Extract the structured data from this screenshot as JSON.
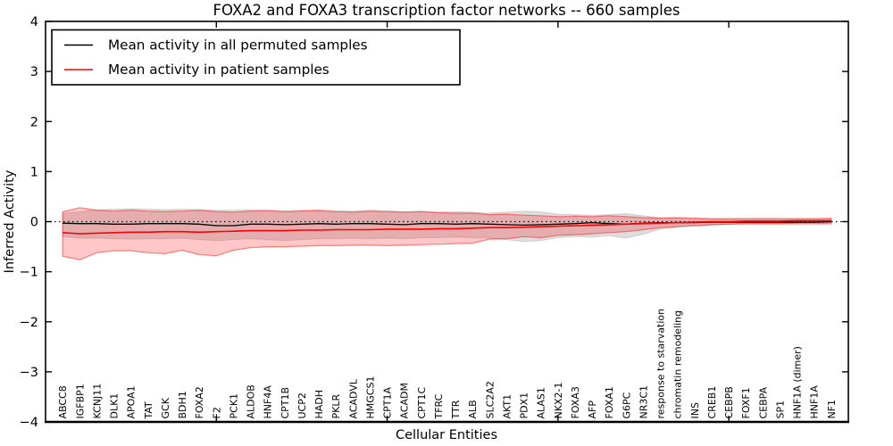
{
  "title": "FOXA2 and FOXA3 transcription factor networks -- 660 samples",
  "chart_data": {
    "type": "line",
    "title": "FOXA2 and FOXA3 transcription factor networks -- 660 samples",
    "xlabel": "Cellular Entities",
    "ylabel": "Inferred Activity",
    "ylim": [
      -4,
      4
    ],
    "yticks": [
      -4,
      -3,
      -2,
      -1,
      0,
      1,
      2,
      3,
      4
    ],
    "xlim": [
      0,
      47
    ],
    "xticks_axis_units": [
      10,
      20,
      30,
      40
    ],
    "grid": false,
    "zero_line": {
      "value": 0,
      "style": "dotted",
      "color": "#000000"
    },
    "legend_position": "upper left",
    "categories": [
      "ABCC8",
      "IGFBP1",
      "KCNJ11",
      "DLK1",
      "APOA1",
      "TAT",
      "GCK",
      "BDH1",
      "FOXA2",
      "F2",
      "PCK1",
      "ALDOB",
      "HNF4A",
      "CPT1B",
      "UCP2",
      "HADH",
      "PKLR",
      "ACADVL",
      "HMGCS1",
      "CPT1A",
      "ACADM",
      "CPT1C",
      "TFRC",
      "TTR",
      "ALB",
      "SLC2A2",
      "AKT1",
      "PDX1",
      "ALAS1",
      "NKX2-1",
      "FOXA3",
      "AFP",
      "FOXA1",
      "G6PC",
      "NR3C1",
      "response to starvation",
      "chromatin remodeling",
      "INS",
      "CREB1",
      "CEBPB",
      "FOXF1",
      "CEBPA",
      "SP1",
      "HNF1A (dimer)",
      "HNF1A",
      "NF1"
    ],
    "series": [
      {
        "name": "Mean activity in all permuted samples",
        "color": "#000000",
        "values": [
          -0.03,
          -0.04,
          -0.04,
          -0.05,
          -0.05,
          -0.04,
          -0.04,
          -0.04,
          -0.05,
          -0.08,
          -0.08,
          -0.05,
          -0.05,
          -0.06,
          -0.05,
          -0.04,
          -0.05,
          -0.04,
          -0.04,
          -0.05,
          -0.06,
          -0.04,
          -0.04,
          -0.05,
          -0.04,
          -0.05,
          -0.06,
          -0.07,
          -0.06,
          -0.05,
          -0.04,
          -0.02,
          -0.04,
          -0.05,
          -0.03,
          -0.02,
          -0.02,
          -0.02,
          -0.01,
          -0.01,
          -0.01,
          -0.01,
          -0.01,
          -0.01,
          -0.01,
          0.0
        ]
      },
      {
        "name": "Mean activity in patient samples",
        "color": "#ff0000",
        "values": [
          -0.22,
          -0.24,
          -0.23,
          -0.22,
          -0.21,
          -0.21,
          -0.2,
          -0.2,
          -0.21,
          -0.2,
          -0.19,
          -0.18,
          -0.18,
          -0.18,
          -0.17,
          -0.17,
          -0.16,
          -0.16,
          -0.16,
          -0.15,
          -0.15,
          -0.15,
          -0.14,
          -0.14,
          -0.13,
          -0.12,
          -0.12,
          -0.11,
          -0.1,
          -0.09,
          -0.08,
          -0.07,
          -0.06,
          -0.05,
          -0.04,
          -0.03,
          -0.02,
          -0.01,
          0.0,
          0.0,
          0.01,
          0.01,
          0.01,
          0.02,
          0.02,
          0.02
        ]
      }
    ],
    "bands": [
      {
        "name": "permuted-samples-range",
        "fill": "rgba(0,0,0,0.13)",
        "edge": "rgba(0,0,0,0.10)",
        "upper": [
          0.17,
          0.2,
          0.24,
          0.25,
          0.26,
          0.25,
          0.24,
          0.25,
          0.24,
          0.23,
          0.23,
          0.24,
          0.23,
          0.22,
          0.23,
          0.24,
          0.22,
          0.21,
          0.23,
          0.22,
          0.2,
          0.21,
          0.19,
          0.2,
          0.19,
          0.17,
          0.19,
          0.21,
          0.2,
          0.15,
          0.14,
          0.13,
          0.14,
          0.16,
          0.12,
          0.08,
          0.07,
          0.06,
          0.05,
          0.05,
          0.05,
          0.05,
          0.05,
          0.05,
          0.05,
          0.05
        ],
        "lower": [
          -0.3,
          -0.33,
          -0.33,
          -0.34,
          -0.35,
          -0.34,
          -0.34,
          -0.33,
          -0.36,
          -0.38,
          -0.36,
          -0.34,
          -0.36,
          -0.38,
          -0.36,
          -0.34,
          -0.34,
          -0.33,
          -0.34,
          -0.33,
          -0.34,
          -0.32,
          -0.32,
          -0.31,
          -0.32,
          -0.33,
          -0.36,
          -0.4,
          -0.38,
          -0.32,
          -0.3,
          -0.31,
          -0.28,
          -0.33,
          -0.25,
          -0.15,
          -0.1,
          -0.08,
          -0.07,
          -0.06,
          -0.06,
          -0.06,
          -0.06,
          -0.06,
          -0.06,
          -0.06
        ]
      },
      {
        "name": "patient-samples-range",
        "fill": "rgba(255,0,0,0.22)",
        "edge": "rgba(255,0,0,0.45)",
        "upper": [
          0.2,
          0.28,
          0.23,
          0.21,
          0.23,
          0.21,
          0.2,
          0.21,
          0.23,
          0.2,
          0.19,
          0.21,
          0.22,
          0.2,
          0.21,
          0.22,
          0.2,
          0.19,
          0.21,
          0.2,
          0.19,
          0.2,
          0.18,
          0.17,
          0.17,
          0.14,
          0.15,
          0.13,
          0.12,
          0.1,
          0.11,
          0.1,
          0.12,
          0.1,
          0.08,
          0.07,
          0.08,
          0.07,
          0.06,
          0.06,
          0.06,
          0.06,
          0.06,
          0.06,
          0.06,
          0.07
        ],
        "lower": [
          -0.69,
          -0.76,
          -0.62,
          -0.58,
          -0.58,
          -0.62,
          -0.64,
          -0.57,
          -0.66,
          -0.68,
          -0.57,
          -0.52,
          -0.5,
          -0.5,
          -0.49,
          -0.48,
          -0.48,
          -0.47,
          -0.47,
          -0.48,
          -0.47,
          -0.46,
          -0.45,
          -0.44,
          -0.43,
          -0.35,
          -0.34,
          -0.3,
          -0.32,
          -0.27,
          -0.26,
          -0.24,
          -0.22,
          -0.2,
          -0.16,
          -0.12,
          -0.1,
          -0.08,
          -0.06,
          -0.05,
          -0.04,
          -0.04,
          -0.04,
          -0.03,
          -0.03,
          -0.03
        ]
      }
    ]
  },
  "colors": {
    "background": "#ffffff",
    "frame": "#000000",
    "permuted_line": "#000000",
    "patient_line": "#ff0000"
  }
}
